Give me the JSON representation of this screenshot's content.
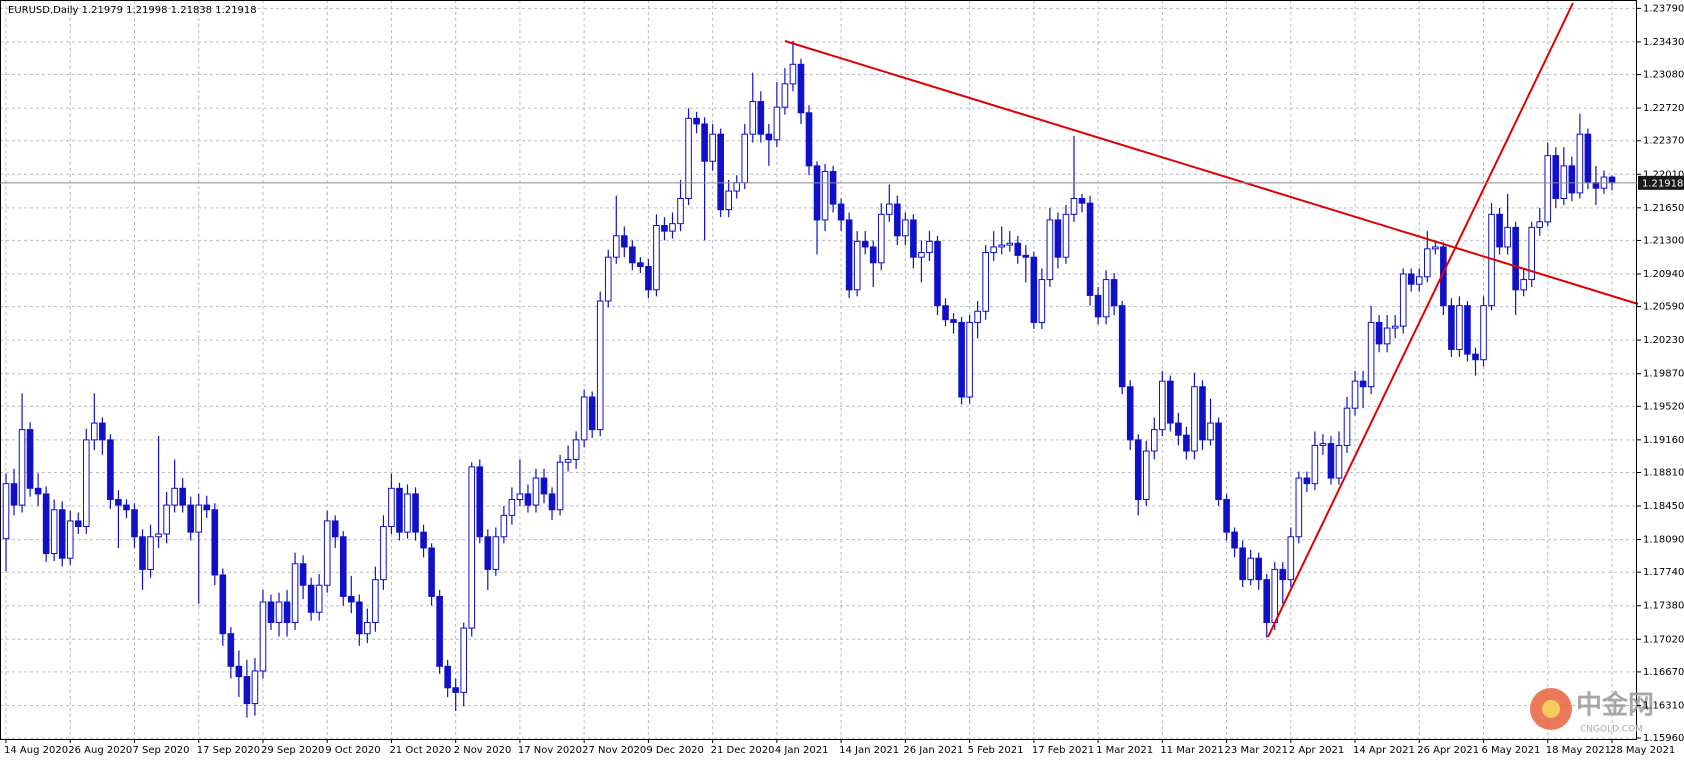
{
  "chart_data": {
    "type": "candlestick",
    "title": "EURUSD,Daily  1.21979 1.21998 1.21838 1.21918",
    "color": "#1010c8",
    "grid": true,
    "ylim": [
      1.1595,
      1.2388
    ],
    "yticks": [
      {
        "value": 1.2379,
        "label": "1.23790"
      },
      {
        "value": 1.2343,
        "label": "1.23430"
      },
      {
        "value": 1.2308,
        "label": "1.23080"
      },
      {
        "value": 1.2272,
        "label": "1.22720"
      },
      {
        "value": 1.2237,
        "label": "1.22370"
      },
      {
        "value": 1.2201,
        "label": "1.22010"
      },
      {
        "value": 1.2165,
        "label": "1.21650"
      },
      {
        "value": 1.213,
        "label": "1.21300"
      },
      {
        "value": 1.2094,
        "label": "1.20940"
      },
      {
        "value": 1.2059,
        "label": "1.20590"
      },
      {
        "value": 1.2023,
        "label": "1.20230"
      },
      {
        "value": 1.1987,
        "label": "1.19870"
      },
      {
        "value": 1.1952,
        "label": "1.19520"
      },
      {
        "value": 1.1916,
        "label": "1.19160"
      },
      {
        "value": 1.1881,
        "label": "1.18810"
      },
      {
        "value": 1.1845,
        "label": "1.18450"
      },
      {
        "value": 1.1809,
        "label": "1.18090"
      },
      {
        "value": 1.1774,
        "label": "1.17740"
      },
      {
        "value": 1.1738,
        "label": "1.17380"
      },
      {
        "value": 1.1702,
        "label": "1.17020"
      },
      {
        "value": 1.1667,
        "label": "1.16670"
      },
      {
        "value": 1.1631,
        "label": "1.16310"
      },
      {
        "value": 1.1596,
        "label": "1.15960"
      }
    ],
    "categories": [
      "14 Aug 2020",
      null,
      null,
      null,
      null,
      null,
      null,
      null,
      "26 Aug 2020",
      null,
      null,
      null,
      null,
      null,
      null,
      null,
      "7 Sep 2020",
      null,
      null,
      null,
      null,
      null,
      null,
      null,
      "17 Sep 2020",
      null,
      null,
      null,
      null,
      null,
      null,
      null,
      "29 Sep 2020",
      null,
      null,
      null,
      null,
      null,
      null,
      null,
      "9 Oct 2020",
      null,
      null,
      null,
      null,
      null,
      null,
      null,
      "21 Oct 2020",
      null,
      null,
      null,
      null,
      null,
      null,
      null,
      "2 Nov 2020",
      null,
      null,
      null,
      null,
      null,
      null,
      null,
      "17 Nov 2020",
      null,
      null,
      null,
      null,
      null,
      null,
      null,
      "27 Nov 2020",
      null,
      null,
      null,
      null,
      null,
      null,
      null,
      "9 Dec 2020",
      null,
      null,
      null,
      null,
      null,
      null,
      null,
      "21 Dec 2020",
      null,
      null,
      null,
      null,
      null,
      null,
      null,
      "4 Jan 2021",
      null,
      null,
      null,
      null,
      null,
      null,
      null,
      "14 Jan 2021",
      null,
      null,
      null,
      null,
      null,
      null,
      null,
      "26 Jan 2021",
      null,
      null,
      null,
      null,
      null,
      null,
      null,
      "5 Feb 2021",
      null,
      null,
      null,
      null,
      null,
      null,
      null,
      "17 Feb 2021",
      null,
      null,
      null,
      null,
      null,
      null,
      null,
      "1 Mar 2021",
      null,
      null,
      null,
      null,
      null,
      null,
      null,
      "11 Mar 2021",
      null,
      null,
      null,
      null,
      null,
      null,
      null,
      "23 Mar 2021",
      null,
      null,
      null,
      null,
      null,
      null,
      null,
      "2 Apr 2021",
      null,
      null,
      null,
      null,
      null,
      null,
      null,
      "14 Apr 2021",
      null,
      null,
      null,
      null,
      null,
      null,
      null,
      "26 Apr 2021",
      null,
      null,
      null,
      null,
      null,
      null,
      null,
      "6 May 2021",
      null,
      null,
      null,
      null,
      null,
      null,
      null,
      "18 May 2021",
      null,
      null,
      null,
      null,
      null,
      null,
      null,
      "28 May 2021"
    ],
    "open": [
      1.181,
      1.1869,
      1.1846,
      1.1927,
      1.1864,
      1.1858,
      1.1794,
      1.1841,
      1.1789,
      1.1829,
      1.1823,
      1.1916,
      1.1934,
      1.1916,
      1.1852,
      1.1846,
      1.1841,
      1.1812,
      1.1777,
      1.1812,
      1.1815,
      1.1846,
      1.1864,
      1.1846,
      1.1817,
      1.1846,
      1.1841,
      1.1771,
      1.1708,
      1.1673,
      1.1662,
      1.1633,
      1.1668,
      1.1742,
      1.172,
      1.1742,
      1.172,
      1.1783,
      1.176,
      1.1731,
      1.176,
      1.1829,
      1.1812,
      1.1748,
      1.1742,
      1.1708,
      1.172,
      1.1766,
      1.1823,
      1.1864,
      1.1817,
      1.1858,
      1.1817,
      1.18,
      1.1748,
      1.1673,
      1.165,
      1.1645,
      1.1714,
      1.1887,
      1.1812,
      1.1777,
      1.1812,
      1.1835,
      1.1852,
      1.1858,
      1.1846,
      1.1875,
      1.1858,
      1.1841,
      1.1892,
      1.1895,
      1.1916,
      1.1962,
      1.1927,
      1.2065,
      1.2112,
      1.2135,
      1.2123,
      1.2106,
      1.2102,
      1.2077,
      1.2146,
      1.214,
      1.2148,
      1.2175,
      1.2261,
      1.2255,
      1.2215,
      1.2244,
      1.2163,
      1.2183,
      1.2192,
      1.2244,
      1.2279,
      1.2244,
      1.2238,
      1.2273,
      1.2298,
      1.2319,
      1.2267,
      1.221,
      1.2152,
      1.2204,
      1.2169,
      1.2152,
      1.2077,
      1.2129,
      1.2123,
      1.2106,
      1.2158,
      1.2169,
      1.2135,
      1.2152,
      1.2112,
      1.2117,
      1.2129,
      1.206,
      1.2045,
      1.2042,
      1.1962,
      1.2042,
      1.2054,
      1.2117,
      1.2123,
      1.2125,
      1.2127,
      1.2114,
      1.2112,
      1.2042,
      1.2088,
      1.2152,
      1.2112,
      1.2158,
      1.2175,
      1.217,
      1.2071,
      1.2048,
      1.2088,
      1.206,
      1.1973,
      1.1916,
      1.1852,
      1.1904,
      1.1927,
      1.1979,
      1.1934,
      1.1921,
      1.1904,
      1.1973,
      1.1916,
      1.1934,
      1.1852,
      1.1817,
      1.18,
      1.1766,
      1.1789,
      1.1766,
      1.172,
      1.1777,
      1.1766,
      1.1812,
      1.1875,
      1.1869,
      1.191,
      1.1912,
      1.1875,
      1.191,
      1.195,
      1.1979,
      1.1973,
      1.2042,
      1.2019,
      1.2036,
      1.2038,
      1.2094,
      1.2083,
      1.2091,
      1.2121,
      1.2123,
      1.206,
      1.2013,
      1.206,
      1.2008,
      1.2002,
      1.206,
      1.2158,
      1.2123,
      1.2144,
      1.2077,
      1.2088,
      1.2144,
      1.215,
      1.2221,
      1.2175,
      1.221,
      1.2181,
      1.2244,
      1.2192,
      1.2186,
      1.21979
    ],
    "high": [
      1.188,
      1.1885,
      1.1966,
      1.1935,
      1.188,
      1.1866,
      1.1852,
      1.185,
      1.184,
      1.1838,
      1.1928,
      1.1966,
      1.194,
      1.1922,
      1.1862,
      1.1852,
      1.1848,
      1.182,
      1.1825,
      1.192,
      1.186,
      1.1895,
      1.1875,
      1.1855,
      1.1858,
      1.1856,
      1.1848,
      1.1778,
      1.1715,
      1.169,
      1.168,
      1.1682,
      1.1755,
      1.175,
      1.1752,
      1.1755,
      1.1795,
      1.1792,
      1.1768,
      1.1772,
      1.184,
      1.1835,
      1.1818,
      1.177,
      1.175,
      1.1735,
      1.178,
      1.1835,
      1.188,
      1.187,
      1.1868,
      1.1865,
      1.1825,
      1.1805,
      1.1755,
      1.168,
      1.166,
      1.172,
      1.1892,
      1.1895,
      1.182,
      1.1822,
      1.1845,
      1.1865,
      1.1895,
      1.1868,
      1.1885,
      1.1885,
      1.1865,
      1.19,
      1.191,
      1.1925,
      1.197,
      1.1968,
      1.2075,
      1.212,
      1.2178,
      1.2145,
      1.213,
      1.2112,
      1.211,
      1.2158,
      1.2155,
      1.216,
      1.2195,
      1.2272,
      1.2268,
      1.2262,
      1.2255,
      1.225,
      1.2195,
      1.22,
      1.2255,
      1.231,
      1.229,
      1.2255,
      1.23,
      1.2315,
      1.2344,
      1.2325,
      1.2275,
      1.2215,
      1.2212,
      1.221,
      1.2175,
      1.216,
      1.214,
      1.214,
      1.213,
      1.217,
      1.219,
      1.2178,
      1.216,
      1.2158,
      1.213,
      1.214,
      1.2135,
      1.2068,
      1.2052,
      1.2048,
      1.205,
      1.2065,
      1.2125,
      1.214,
      1.2145,
      1.214,
      1.2135,
      1.2125,
      1.2118,
      1.21,
      1.2165,
      1.216,
      1.2168,
      1.2242,
      1.218,
      1.2178,
      1.208,
      1.2098,
      1.2095,
      1.2065,
      1.198,
      1.1922,
      1.1915,
      1.194,
      1.199,
      1.1985,
      1.1945,
      1.193,
      1.1988,
      1.198,
      1.196,
      1.194,
      1.1858,
      1.1822,
      1.1808,
      1.1798,
      1.1795,
      1.1772,
      1.1785,
      1.1785,
      1.1822,
      1.1882,
      1.1882,
      1.1925,
      1.1922,
      1.192,
      1.1925,
      1.1962,
      1.199,
      1.199,
      1.206,
      1.205,
      1.205,
      1.205,
      1.21,
      1.21,
      1.21,
      1.214,
      1.213,
      1.2128,
      1.2068,
      1.207,
      1.2065,
      1.2015,
      1.207,
      1.217,
      1.2165,
      1.218,
      1.215,
      1.21,
      1.215,
      1.2165,
      1.2235,
      1.223,
      1.223,
      1.222,
      1.2266,
      1.225,
      1.221,
      1.2205,
      1.21998
    ],
    "low": [
      1.1775,
      1.1835,
      1.1838,
      1.1855,
      1.1845,
      1.1785,
      1.1786,
      1.178,
      1.1782,
      1.1815,
      1.1815,
      1.1905,
      1.19,
      1.1842,
      1.18,
      1.1832,
      1.18,
      1.1755,
      1.1768,
      1.18,
      1.1805,
      1.1838,
      1.1838,
      1.1808,
      1.174,
      1.1832,
      1.176,
      1.1695,
      1.166,
      1.164,
      1.1618,
      1.162,
      1.166,
      1.1712,
      1.1705,
      1.1705,
      1.1712,
      1.1745,
      1.1722,
      1.1722,
      1.1752,
      1.18,
      1.1738,
      1.173,
      1.1695,
      1.1698,
      1.171,
      1.1755,
      1.1815,
      1.1808,
      1.181,
      1.1808,
      1.179,
      1.1738,
      1.1665,
      1.164,
      1.1625,
      1.163,
      1.1705,
      1.1805,
      1.1755,
      1.177,
      1.1805,
      1.1825,
      1.1845,
      1.1838,
      1.1838,
      1.1848,
      1.183,
      1.1835,
      1.1882,
      1.1885,
      1.1908,
      1.1918,
      1.192,
      1.2058,
      1.2105,
      1.2112,
      1.2098,
      1.2095,
      1.2068,
      1.207,
      1.213,
      1.2132,
      1.214,
      1.2168,
      1.2245,
      1.213,
      1.2205,
      1.2155,
      1.2155,
      1.2175,
      1.2185,
      1.2235,
      1.2235,
      1.221,
      1.223,
      1.2265,
      1.229,
      1.2255,
      1.22,
      1.2115,
      1.214,
      1.216,
      1.214,
      1.2068,
      1.207,
      1.2115,
      1.208,
      1.2098,
      1.215,
      1.2125,
      1.2125,
      1.21,
      1.2085,
      1.2108,
      1.205,
      1.2038,
      1.203,
      1.1954,
      1.1955,
      1.2025,
      1.2045,
      1.2108,
      1.2115,
      1.2118,
      1.2105,
      1.2085,
      1.2035,
      1.2035,
      1.208,
      1.21,
      1.2105,
      1.215,
      1.216,
      1.206,
      1.204,
      1.204,
      1.205,
      1.1965,
      1.1905,
      1.1835,
      1.1845,
      1.1895,
      1.192,
      1.1925,
      1.191,
      1.1895,
      1.1895,
      1.1905,
      1.191,
      1.1845,
      1.1808,
      1.179,
      1.1758,
      1.176,
      1.1755,
      1.1704,
      1.1712,
      1.174,
      1.1758,
      1.1805,
      1.186,
      1.1862,
      1.19,
      1.1868,
      1.1868,
      1.1902,
      1.1942,
      1.195,
      1.1965,
      1.201,
      1.201,
      1.2025,
      1.203,
      1.2075,
      1.2075,
      1.2085,
      1.2115,
      1.205,
      1.2005,
      1.2005,
      1.2,
      1.1985,
      1.1995,
      1.2055,
      1.2115,
      1.2115,
      1.205,
      1.207,
      1.208,
      1.2135,
      1.2145,
      1.2165,
      1.2168,
      1.2172,
      1.2175,
      1.2185,
      1.2168,
      1.218,
      1.21838
    ],
    "close": [
      1.1869,
      1.1846,
      1.1927,
      1.1864,
      1.1858,
      1.1794,
      1.1841,
      1.1789,
      1.1829,
      1.1823,
      1.1916,
      1.1934,
      1.1916,
      1.1852,
      1.1846,
      1.1841,
      1.1812,
      1.1777,
      1.1812,
      1.1815,
      1.1846,
      1.1864,
      1.1846,
      1.1817,
      1.1846,
      1.1841,
      1.1771,
      1.1708,
      1.1673,
      1.1662,
      1.1633,
      1.1668,
      1.1742,
      1.172,
      1.1742,
      1.172,
      1.1783,
      1.176,
      1.1731,
      1.176,
      1.1829,
      1.1812,
      1.1748,
      1.1742,
      1.1708,
      1.172,
      1.1766,
      1.1823,
      1.1864,
      1.1817,
      1.1858,
      1.1817,
      1.18,
      1.1748,
      1.1673,
      1.165,
      1.1645,
      1.1714,
      1.1887,
      1.1812,
      1.1777,
      1.1812,
      1.1835,
      1.1852,
      1.1858,
      1.1846,
      1.1875,
      1.1858,
      1.1841,
      1.1892,
      1.1895,
      1.1916,
      1.1962,
      1.1927,
      1.2065,
      1.2112,
      1.2135,
      1.2123,
      1.2106,
      1.2102,
      1.2077,
      1.2146,
      1.214,
      1.2148,
      1.2175,
      1.2261,
      1.2255,
      1.2215,
      1.2244,
      1.2163,
      1.2183,
      1.2192,
      1.2244,
      1.2279,
      1.2244,
      1.2238,
      1.2273,
      1.2298,
      1.2319,
      1.2267,
      1.221,
      1.2152,
      1.2204,
      1.2169,
      1.2152,
      1.2077,
      1.2129,
      1.2123,
      1.2106,
      1.2158,
      1.2169,
      1.2135,
      1.2152,
      1.2112,
      1.2117,
      1.2129,
      1.206,
      1.2045,
      1.2042,
      1.1962,
      1.2042,
      1.2054,
      1.2117,
      1.2123,
      1.2125,
      1.2127,
      1.2114,
      1.2112,
      1.2042,
      1.2088,
      1.2152,
      1.2112,
      1.2158,
      1.2175,
      1.217,
      1.2071,
      1.2048,
      1.2088,
      1.206,
      1.1973,
      1.1916,
      1.1852,
      1.1904,
      1.1927,
      1.1979,
      1.1934,
      1.1921,
      1.1904,
      1.1973,
      1.1916,
      1.1934,
      1.1852,
      1.1817,
      1.18,
      1.1766,
      1.1789,
      1.1766,
      1.172,
      1.1777,
      1.1766,
      1.1812,
      1.1875,
      1.1869,
      1.191,
      1.1912,
      1.1875,
      1.191,
      1.195,
      1.1979,
      1.1973,
      1.2042,
      1.2019,
      1.2036,
      1.2038,
      1.2094,
      1.2083,
      1.2091,
      1.2121,
      1.2123,
      1.206,
      1.2013,
      1.206,
      1.2008,
      1.2002,
      1.206,
      1.2158,
      1.2123,
      1.2144,
      1.2077,
      1.2088,
      1.2144,
      1.215,
      1.2221,
      1.2175,
      1.221,
      1.2181,
      1.2244,
      1.2192,
      1.2186,
      1.2198,
      1.21918
    ]
  },
  "watermark": {
    "text": "中金网",
    "sub": "CNGOLD.COM"
  }
}
